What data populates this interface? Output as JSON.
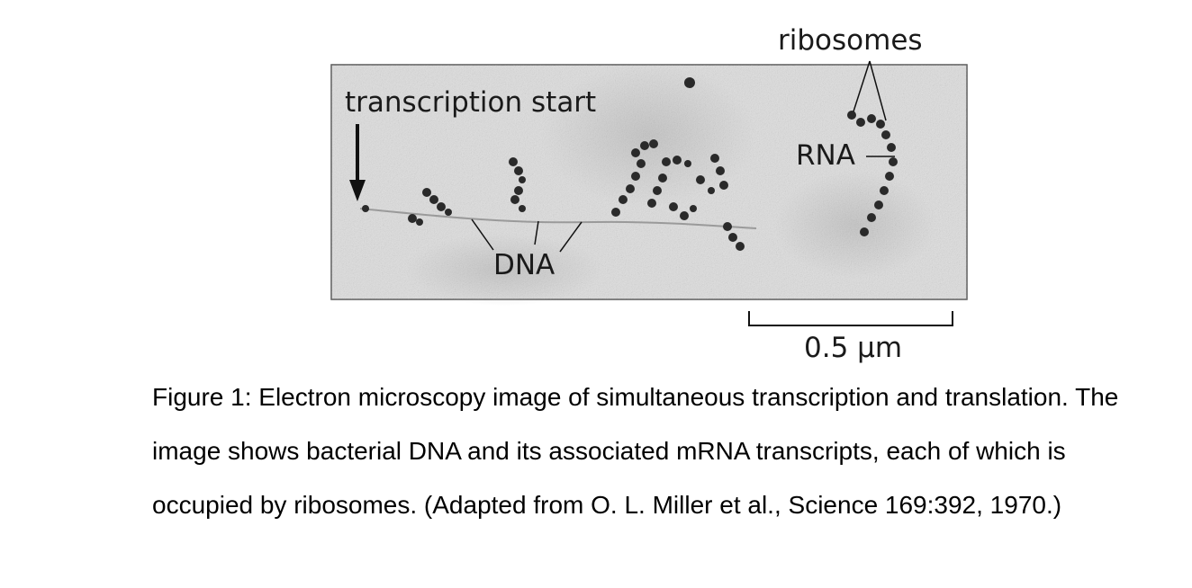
{
  "figure": {
    "labels": {
      "ribosomes": "ribosomes",
      "transcription_start": "transcription start",
      "rna": "RNA",
      "dna": "DNA",
      "scale_bar": "0.5 µm"
    },
    "micrograph_background": "#dedede",
    "stain_color": "#2a2a2a"
  },
  "caption": {
    "text": "Figure 1: Electron microscopy image of simultaneous transcription and translation. The image shows bacterial DNA and its associated mRNA transcripts, each of which is occupied by ribosomes. (Adapted from O. L. Miller et al., Science 169:392, 1970.)"
  }
}
